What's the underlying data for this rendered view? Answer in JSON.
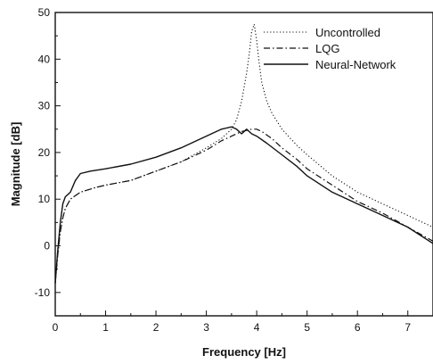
{
  "chart_data": {
    "type": "line",
    "xlabel": "Frequency [Hz]",
    "ylabel": "Magnitude [dB]",
    "xlim": [
      0,
      7.5
    ],
    "ylim": [
      -15,
      50
    ],
    "xticks": [
      "0",
      "1",
      "2",
      "3",
      "4",
      "5",
      "6",
      "7"
    ],
    "yticks": [
      "-10",
      "0",
      "10",
      "20",
      "30",
      "40",
      "50"
    ],
    "grid": false,
    "legend_position": "top-right",
    "series": [
      {
        "name": "Uncontrolled",
        "style": "dotted",
        "x": [
          0,
          0.05,
          0.1,
          0.15,
          0.2,
          0.3,
          0.5,
          0.8,
          1.0,
          1.5,
          2.0,
          2.5,
          3.0,
          3.3,
          3.5,
          3.6,
          3.7,
          3.8,
          3.85,
          3.9,
          3.95,
          4.0,
          4.05,
          4.1,
          4.2,
          4.3,
          4.5,
          4.8,
          5.0,
          5.5,
          6.0,
          6.5,
          7.0,
          7.5
        ],
        "values": [
          -8,
          -2,
          3,
          6,
          8,
          10,
          11.5,
          12.5,
          13,
          14,
          16,
          18,
          21,
          23,
          25,
          27,
          31,
          37,
          41,
          46,
          47.5,
          44,
          39,
          35,
          31,
          28.5,
          25,
          21.5,
          19.5,
          15,
          11.5,
          9,
          6.5,
          4
        ]
      },
      {
        "name": "LQG",
        "style": "dash-dot",
        "x": [
          0,
          0.05,
          0.1,
          0.15,
          0.2,
          0.3,
          0.5,
          0.8,
          1.0,
          1.5,
          2.0,
          2.5,
          3.0,
          3.3,
          3.5,
          3.7,
          3.9,
          4.0,
          4.1,
          4.3,
          4.5,
          4.8,
          5.0,
          5.5,
          6.0,
          6.5,
          7.0,
          7.5
        ],
        "values": [
          -8,
          -2,
          3,
          6,
          8,
          10,
          11.5,
          12.5,
          13,
          14,
          16,
          18,
          20.5,
          22.5,
          23.5,
          24.5,
          25,
          25,
          24.5,
          23,
          21,
          18.5,
          16.5,
          13,
          9.5,
          7,
          4,
          1
        ]
      },
      {
        "name": "Neural-Network",
        "style": "solid",
        "x": [
          0,
          0.05,
          0.1,
          0.15,
          0.2,
          0.3,
          0.4,
          0.5,
          0.7,
          1.0,
          1.5,
          2.0,
          2.5,
          3.0,
          3.3,
          3.5,
          3.6,
          3.7,
          3.8,
          3.9,
          4.0,
          4.2,
          4.5,
          4.8,
          5.0,
          5.5,
          6.0,
          6.5,
          7.0,
          7.5
        ],
        "values": [
          -8,
          -1,
          5,
          9,
          10.5,
          11.5,
          14,
          15.5,
          16,
          16.5,
          17.5,
          19,
          21,
          23.5,
          25,
          25.5,
          25,
          24,
          25,
          24,
          23.5,
          22,
          19.5,
          17,
          15,
          11.5,
          9,
          6.5,
          4,
          0.5
        ]
      }
    ]
  }
}
